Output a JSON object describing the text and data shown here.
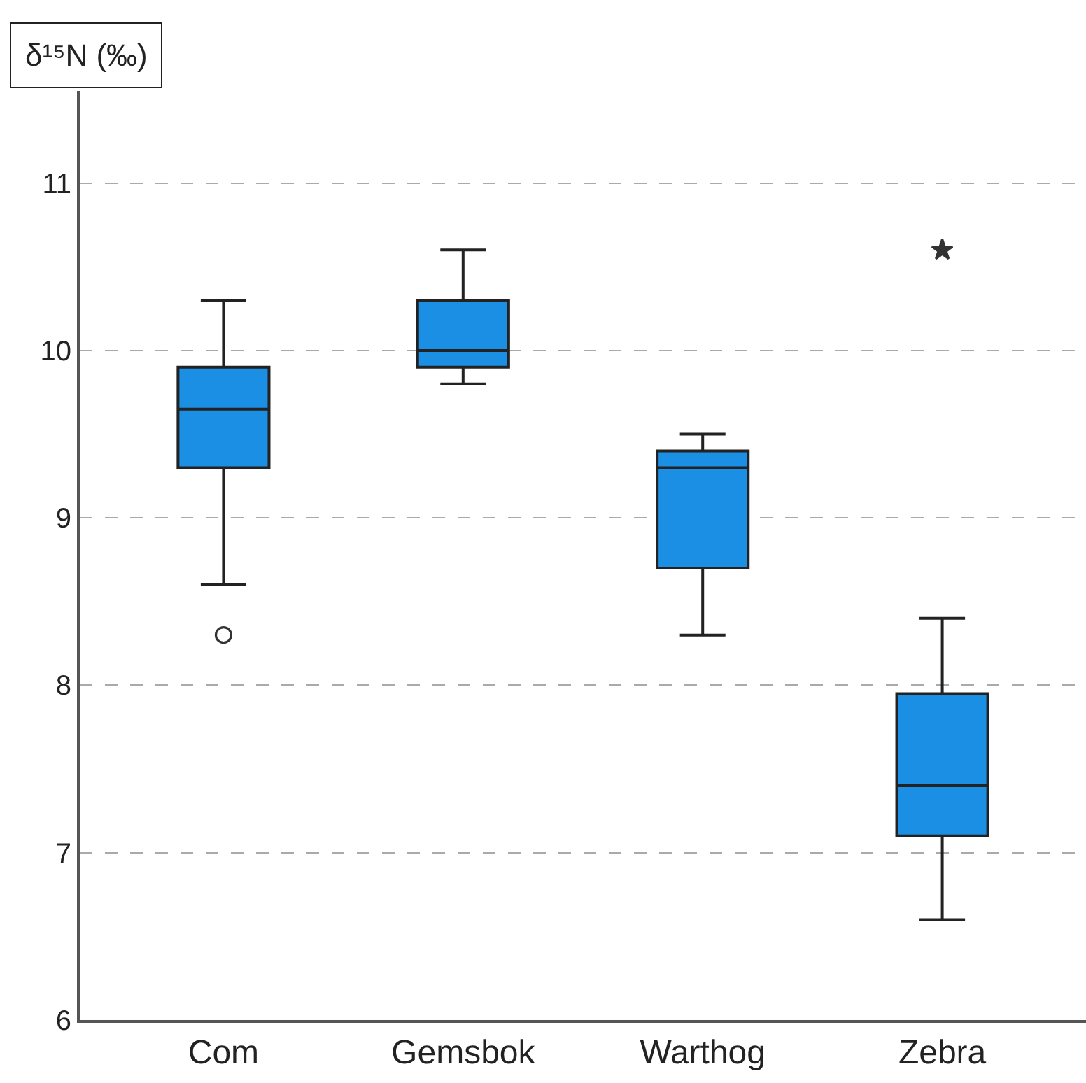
{
  "chart_data": {
    "type": "box",
    "ylabel": "δ¹⁵N (‰)",
    "categories": [
      "Com",
      "Gemsbok",
      "Warthog",
      "Zebra"
    ],
    "color": "#1a8fe3",
    "boxes": [
      {
        "low": 8.6,
        "q1": 9.3,
        "median": 9.65,
        "q3": 9.9,
        "high": 10.3
      },
      {
        "low": 9.8,
        "q1": 9.9,
        "median": 10.0,
        "q3": 10.3,
        "high": 10.6
      },
      {
        "low": 8.3,
        "q1": 8.7,
        "median": 9.3,
        "q3": 9.4,
        "high": 9.5
      },
      {
        "low": 6.6,
        "q1": 7.1,
        "median": 7.4,
        "q3": 7.95,
        "high": 8.4
      }
    ],
    "series": [
      {
        "type": "scatter",
        "marker": "circle",
        "color": "#333333",
        "x": [
          "Com"
        ],
        "values": [
          8.3
        ]
      },
      {
        "type": "scatter",
        "marker": "star",
        "color": "#333333",
        "x": [
          "Zebra"
        ],
        "values": [
          10.6
        ]
      }
    ],
    "ylim": [
      6,
      11.55
    ],
    "yticks": [
      6,
      7,
      8,
      9,
      10,
      11
    ],
    "grid": "y"
  }
}
